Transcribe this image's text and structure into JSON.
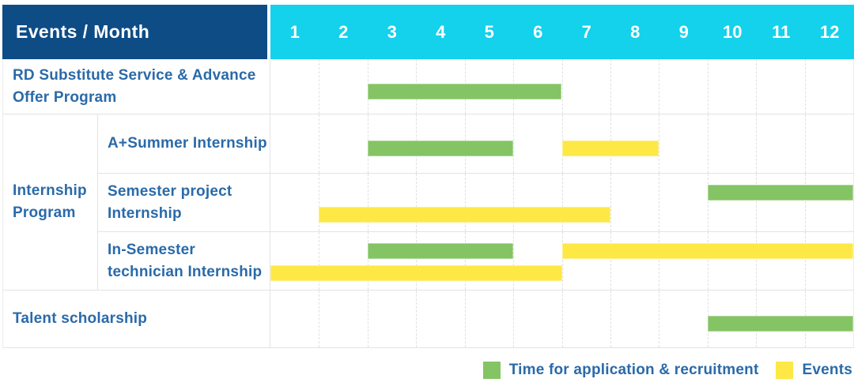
{
  "header": {
    "corner_label": "Events / Month",
    "months": [
      "1",
      "2",
      "3",
      "4",
      "5",
      "6",
      "7",
      "8",
      "9",
      "10",
      "11",
      "12"
    ]
  },
  "groups": [
    {
      "label": "Internship Program"
    }
  ],
  "legend": {
    "items": [
      {
        "label": "Time for application & recruitment",
        "series": "recruitment"
      },
      {
        "label": "Events",
        "series": "event"
      }
    ]
  },
  "colors": {
    "navy": "#0e4c86",
    "cyan": "#14d1ec",
    "green": "#84c464",
    "yellow": "#fde846",
    "text_blue": "#2a6aa9"
  },
  "chart_data": {
    "type": "bar",
    "subtype": "gantt",
    "title": "Events / Month",
    "x_axis": {
      "unit": "month",
      "ticks": [
        1,
        2,
        3,
        4,
        5,
        6,
        7,
        8,
        9,
        10,
        11,
        12
      ],
      "range": [
        1,
        12
      ]
    },
    "grid": "dashed-vertical-month-lines",
    "legend_position": "bottom-right",
    "series_colors": {
      "recruitment": "#84c464",
      "event": "#fde846"
    },
    "rows": [
      {
        "label": "RD Substitute Service & Advance Offer Program",
        "group": null,
        "tracks": [
          [
            {
              "series": "recruitment",
              "start_month": 3,
              "end_month": 6
            }
          ]
        ]
      },
      {
        "label": "A+Summer Internship",
        "group": "Internship Program",
        "tracks": [
          [
            {
              "series": "recruitment",
              "start_month": 3,
              "end_month": 5
            },
            {
              "series": "event",
              "start_month": 7,
              "end_month": 8
            }
          ]
        ]
      },
      {
        "label": "Semester project Internship",
        "group": "Internship Program",
        "tracks": [
          [
            {
              "series": "recruitment",
              "start_month": 10,
              "end_month": 12
            }
          ],
          [
            {
              "series": "event",
              "start_month": 2,
              "end_month": 7
            }
          ]
        ]
      },
      {
        "label": "In-Semester technician Internship",
        "group": "Internship Program",
        "tracks": [
          [
            {
              "series": "recruitment",
              "start_month": 3,
              "end_month": 5
            },
            {
              "series": "event",
              "start_month": 7,
              "end_month": 12
            }
          ],
          [
            {
              "series": "event",
              "start_month": 1,
              "end_month": 6
            }
          ]
        ]
      },
      {
        "label": "Talent scholarship",
        "group": null,
        "tracks": [
          [
            {
              "series": "recruitment",
              "start_month": 10,
              "end_month": 12
            }
          ]
        ]
      }
    ]
  }
}
